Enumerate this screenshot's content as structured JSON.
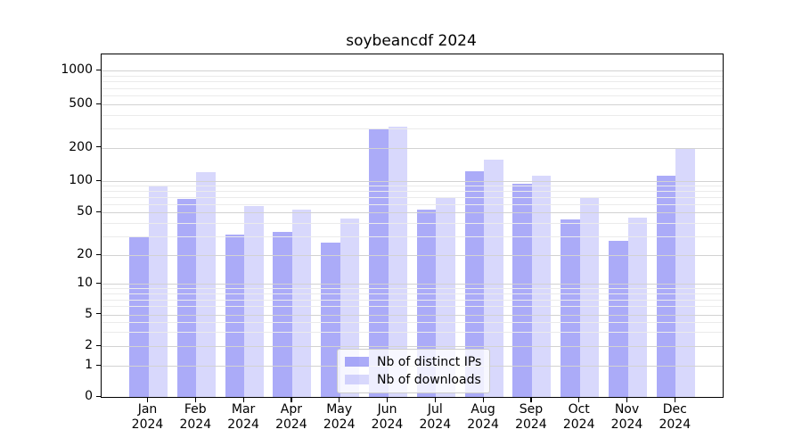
{
  "chart_data": {
    "type": "bar",
    "title": "soybeancdf 2024",
    "yscale": "symlog",
    "grid": "both",
    "legend_position": "lower center",
    "ylim": [
      0,
      1200
    ],
    "y_tick_labels": [
      "0",
      "1",
      "2",
      "5",
      "10",
      "20",
      "50",
      "100",
      "200",
      "500",
      "1000"
    ],
    "y_ticks": [
      0,
      1,
      2,
      5,
      10,
      20,
      50,
      100,
      200,
      500,
      1000
    ],
    "y_minor_ticks": [
      3,
      4,
      6,
      7,
      8,
      9,
      30,
      40,
      60,
      70,
      80,
      90,
      300,
      400,
      600,
      700,
      800,
      900
    ],
    "x_months": [
      "Jan",
      "Feb",
      "Mar",
      "Apr",
      "May",
      "Jun",
      "Jul",
      "Aug",
      "Sep",
      "Oct",
      "Nov",
      "Dec"
    ],
    "x_year": "2024",
    "categories": [
      "Jan 2024",
      "Feb 2024",
      "Mar 2024",
      "Apr 2024",
      "May 2024",
      "Jun 2024",
      "Jul 2024",
      "Aug 2024",
      "Sep 2024",
      "Oct 2024",
      "Nov 2024",
      "Dec 2024"
    ],
    "series": [
      {
        "name": "Nb of distinct IPs",
        "color": "rgba(13,13,236,0.35)",
        "values": [
          30,
          67,
          31,
          33,
          26,
          292,
          53,
          122,
          94,
          43,
          27,
          112
        ]
      },
      {
        "name": "Nb of downloads",
        "color": "rgba(13,13,236,0.16)",
        "values": [
          90,
          120,
          58,
          53,
          44,
          313,
          69,
          155,
          112,
          69,
          45,
          194
        ]
      }
    ]
  }
}
